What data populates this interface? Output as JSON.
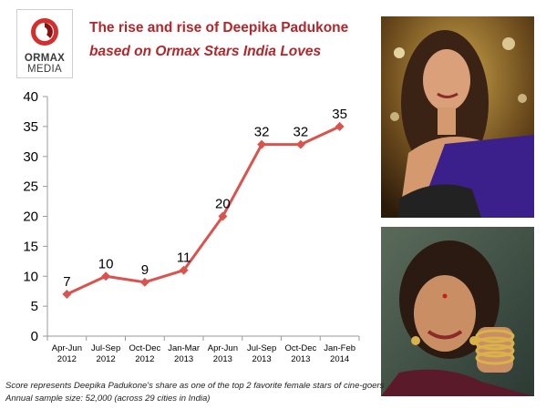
{
  "brand": {
    "line1": "ORMAX",
    "line2": "MEDIA"
  },
  "title": "The rise and rise of Deepika Padukone",
  "subtitle": "based on Ormax Stars India Loves",
  "chart_data": {
    "type": "line",
    "categories": [
      [
        "Apr-Jun",
        "2012"
      ],
      [
        "Jul-Sep",
        "2012"
      ],
      [
        "Oct-Dec",
        "2012"
      ],
      [
        "Jan-Mar",
        "2013"
      ],
      [
        "Apr-Jun",
        "2013"
      ],
      [
        "Jul-Sep",
        "2013"
      ],
      [
        "Oct-Dec",
        "2013"
      ],
      [
        "Jan-Feb",
        "2014"
      ]
    ],
    "values": [
      7,
      10,
      9,
      11,
      20,
      32,
      32,
      35
    ],
    "ylim": [
      0,
      40
    ],
    "yticks": [
      0,
      5,
      10,
      15,
      20,
      25,
      30,
      35,
      40
    ],
    "grid": false,
    "color": "#d9534f",
    "data_labels": true
  },
  "footnote": {
    "line1": "Score represents Deepika Padukone's share as one of the top 2 favorite female stars of cine-goers",
    "line2": "Annual sample size: 52,000 (across 29 cities in India)"
  }
}
